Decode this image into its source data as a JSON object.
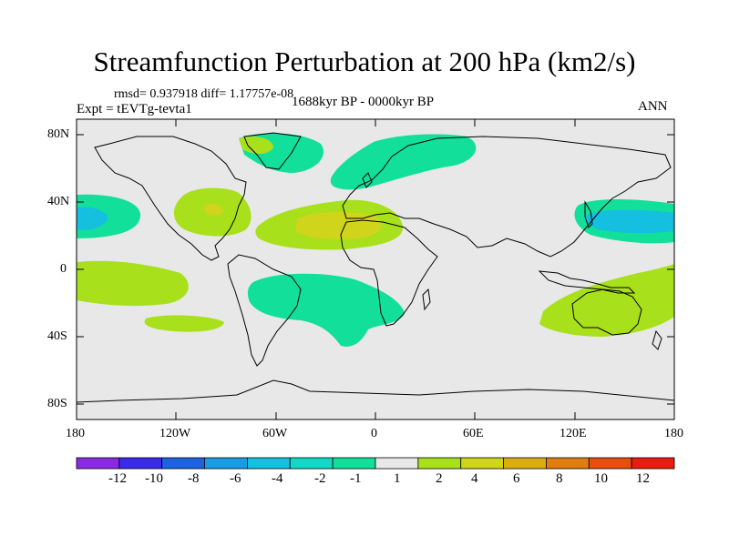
{
  "title": "Streamfunction Perturbation at 200 hPa (km2/s)",
  "stats_text": "rmsd= 0.937918 diff= 1.17757e-08",
  "experiment_text": "Expt = tEVTg-tevta1",
  "period_text": "1688kyr BP - 0000kyr BP",
  "season_text": "ANN",
  "lat_labels": [
    "80N",
    "40N",
    "0",
    "40S",
    "80S"
  ],
  "lon_labels": [
    "180",
    "120W",
    "60W",
    "0",
    "60E",
    "120E",
    "180"
  ],
  "colorbar": {
    "labels": [
      "-12",
      "-10",
      "-8",
      "-6",
      "-4",
      "-2",
      "-1",
      "1",
      "2",
      "4",
      "6",
      "8",
      "10",
      "12"
    ],
    "colors": [
      "#8a2be2",
      "#3a2be8",
      "#1c63e0",
      "#1a9be6",
      "#14bfe0",
      "#12d8c8",
      "#12e09a",
      "#e8e8e8",
      "#a8e01c",
      "#d0d41a",
      "#dcac14",
      "#e07c10",
      "#e84e0c",
      "#e81c10"
    ]
  },
  "fill_colors": {
    "background": "#e8e8e8",
    "neg_1": "#12e09a",
    "neg_2": "#14bfe0",
    "pos_1": "#a8e01c",
    "pos_2": "#d0d41a",
    "pos_4": "#dcac14"
  }
}
